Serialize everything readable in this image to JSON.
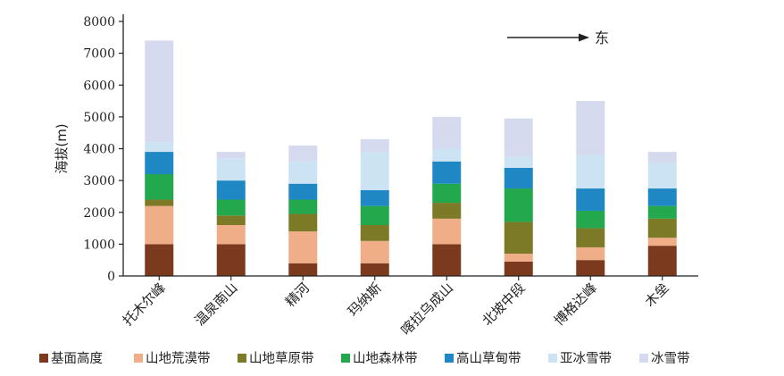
{
  "chart_data": {
    "type": "stacked-bar",
    "title": "",
    "xlabel": "",
    "ylabel": "海拔(m)",
    "ylim": [
      0,
      8000
    ],
    "yticks": [
      0,
      1000,
      2000,
      3000,
      4000,
      5000,
      6000,
      7000,
      8000
    ],
    "grid": false,
    "legend_position": "bottom",
    "annotation": "东",
    "categories": [
      "托木尔峰",
      "温泉南山",
      "精河",
      "玛纳斯",
      "喀拉乌成山",
      "北坡中段",
      "博格达峰",
      "木垒"
    ],
    "series": [
      {
        "name": "基面高度",
        "color": "#7B3A1E",
        "values": [
          1000,
          1000,
          400,
          400,
          1000,
          450,
          500,
          950
        ]
      },
      {
        "name": "山地荒漠带",
        "color": "#F0AE88",
        "values": [
          1200,
          600,
          1000,
          700,
          800,
          250,
          400,
          250
        ]
      },
      {
        "name": "山地草原带",
        "color": "#7D7A27",
        "values": [
          200,
          300,
          550,
          500,
          500,
          1000,
          600,
          600
        ]
      },
      {
        "name": "山地森林带",
        "color": "#23A84E",
        "values": [
          800,
          500,
          450,
          600,
          600,
          1050,
          550,
          400
        ]
      },
      {
        "name": "高山草甸带",
        "color": "#1F87C4",
        "values": [
          700,
          600,
          500,
          500,
          700,
          650,
          700,
          550
        ]
      },
      {
        "name": "亚冰雪带",
        "color": "#CCE3F4",
        "values": [
          300,
          700,
          700,
          1200,
          400,
          350,
          1050,
          800
        ]
      },
      {
        "name": "冰雪带",
        "color": "#D6DAEE",
        "values": [
          3200,
          200,
          500,
          400,
          1000,
          1200,
          1700,
          350
        ]
      }
    ]
  }
}
